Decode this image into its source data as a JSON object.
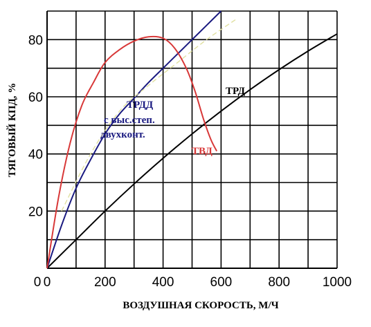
{
  "chart_data": {
    "type": "line",
    "xlabel": "ВОЗДУШНАЯ СКОРОСТЬ, М/Ч",
    "ylabel": "ТЯГОВЫЙ КПД, %",
    "xlim": [
      0,
      1000
    ],
    "ylim": [
      0,
      90
    ],
    "x_ticks": [
      "0",
      "200",
      "400",
      "600",
      "800",
      "1000"
    ],
    "y_ticks": [
      "20",
      "40",
      "60",
      "80"
    ],
    "grid": true,
    "series": [
      {
        "name": "ТРД",
        "label_lines": [
          "ТРД"
        ],
        "color": "#000000",
        "points": [
          [
            0,
            0
          ],
          [
            100,
            10
          ],
          [
            200,
            20
          ],
          [
            300,
            29.5
          ],
          [
            400,
            38.5
          ],
          [
            500,
            47
          ],
          [
            600,
            55
          ],
          [
            700,
            62.5
          ],
          [
            800,
            69.5
          ],
          [
            900,
            76
          ],
          [
            1000,
            82
          ]
        ]
      },
      {
        "name": "ТРДД с выс.степ. двухконт.",
        "label_lines": [
          "ТРДД",
          "с выс.степ.",
          "двухконт."
        ],
        "color": "#1a1a80",
        "points": [
          [
            0,
            0
          ],
          [
            50,
            15
          ],
          [
            100,
            28
          ],
          [
            150,
            38
          ],
          [
            200,
            47
          ],
          [
            250,
            54
          ],
          [
            300,
            59.5
          ],
          [
            350,
            65
          ],
          [
            400,
            70
          ],
          [
            450,
            75
          ],
          [
            500,
            80
          ],
          [
            550,
            85
          ],
          [
            600,
            90
          ]
        ]
      },
      {
        "name": "ТВД",
        "label_lines": [
          "ТВД"
        ],
        "color": "#d83838",
        "points": [
          [
            0,
            0
          ],
          [
            40,
            25
          ],
          [
            80,
            44
          ],
          [
            120,
            57
          ],
          [
            160,
            65
          ],
          [
            200,
            72
          ],
          [
            250,
            76.5
          ],
          [
            300,
            79.5
          ],
          [
            350,
            81
          ],
          [
            400,
            80.5
          ],
          [
            440,
            77
          ],
          [
            480,
            70
          ],
          [
            510,
            62
          ],
          [
            540,
            52
          ],
          [
            565,
            45
          ],
          [
            585,
            41
          ]
        ]
      },
      {
        "name": "",
        "label_lines": [],
        "color": "#e0e0a0",
        "dashed": true,
        "points": [
          [
            50,
            20
          ],
          [
            150,
            40
          ],
          [
            250,
            55
          ],
          [
            350,
            64
          ],
          [
            450,
            72
          ],
          [
            550,
            80
          ],
          [
            650,
            87
          ]
        ]
      }
    ]
  }
}
